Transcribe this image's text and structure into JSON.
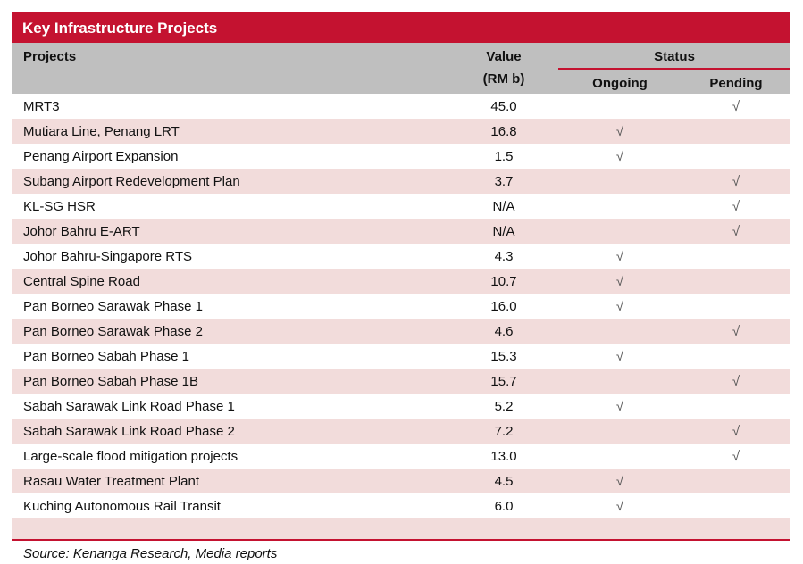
{
  "title": "Key Infrastructure Projects",
  "headers": {
    "projects": "Projects",
    "value": "Value",
    "value_unit": "(RM b)",
    "status": "Status",
    "ongoing": "Ongoing",
    "pending": "Pending"
  },
  "check": "√",
  "rows": [
    {
      "project": "MRT3",
      "value": "45.0",
      "status": "pending"
    },
    {
      "project": "Mutiara Line, Penang LRT",
      "value": "16.8",
      "status": "ongoing"
    },
    {
      "project": "Penang Airport Expansion",
      "value": "1.5",
      "status": "ongoing"
    },
    {
      "project": "Subang Airport Redevelopment Plan",
      "value": "3.7",
      "status": "pending"
    },
    {
      "project": "KL-SG HSR",
      "value": "N/A",
      "status": "pending"
    },
    {
      "project": "Johor Bahru E-ART",
      "value": "N/A",
      "status": "pending"
    },
    {
      "project": "Johor Bahru-Singapore RTS",
      "value": "4.3",
      "status": "ongoing"
    },
    {
      "project": "Central Spine Road",
      "value": "10.7",
      "status": "ongoing"
    },
    {
      "project": "Pan Borneo Sarawak Phase 1",
      "value": "16.0",
      "status": "ongoing"
    },
    {
      "project": "Pan Borneo Sarawak Phase 2",
      "value": "4.6",
      "status": "pending"
    },
    {
      "project": "Pan Borneo Sabah Phase 1",
      "value": "15.3",
      "status": "ongoing"
    },
    {
      "project": "Pan Borneo Sabah Phase 1B",
      "value": "15.7",
      "status": "pending"
    },
    {
      "project": "Sabah Sarawak Link Road Phase 1",
      "value": "5.2",
      "status": "ongoing"
    },
    {
      "project": "Sabah Sarawak Link Road Phase 2",
      "value": "7.2",
      "status": "pending"
    },
    {
      "project": "Large-scale flood mitigation projects",
      "value": "13.0",
      "status": "pending"
    },
    {
      "project": "Rasau Water Treatment Plant",
      "value": "4.5",
      "status": "ongoing"
    },
    {
      "project": "Kuching Autonomous Rail Transit",
      "value": "6.0",
      "status": "ongoing"
    }
  ],
  "source": "Source: Kenanga Research, Media reports",
  "colors": {
    "accent": "#c41230",
    "header_bg": "#bfbfbf",
    "stripe": "#f2dcdb"
  }
}
